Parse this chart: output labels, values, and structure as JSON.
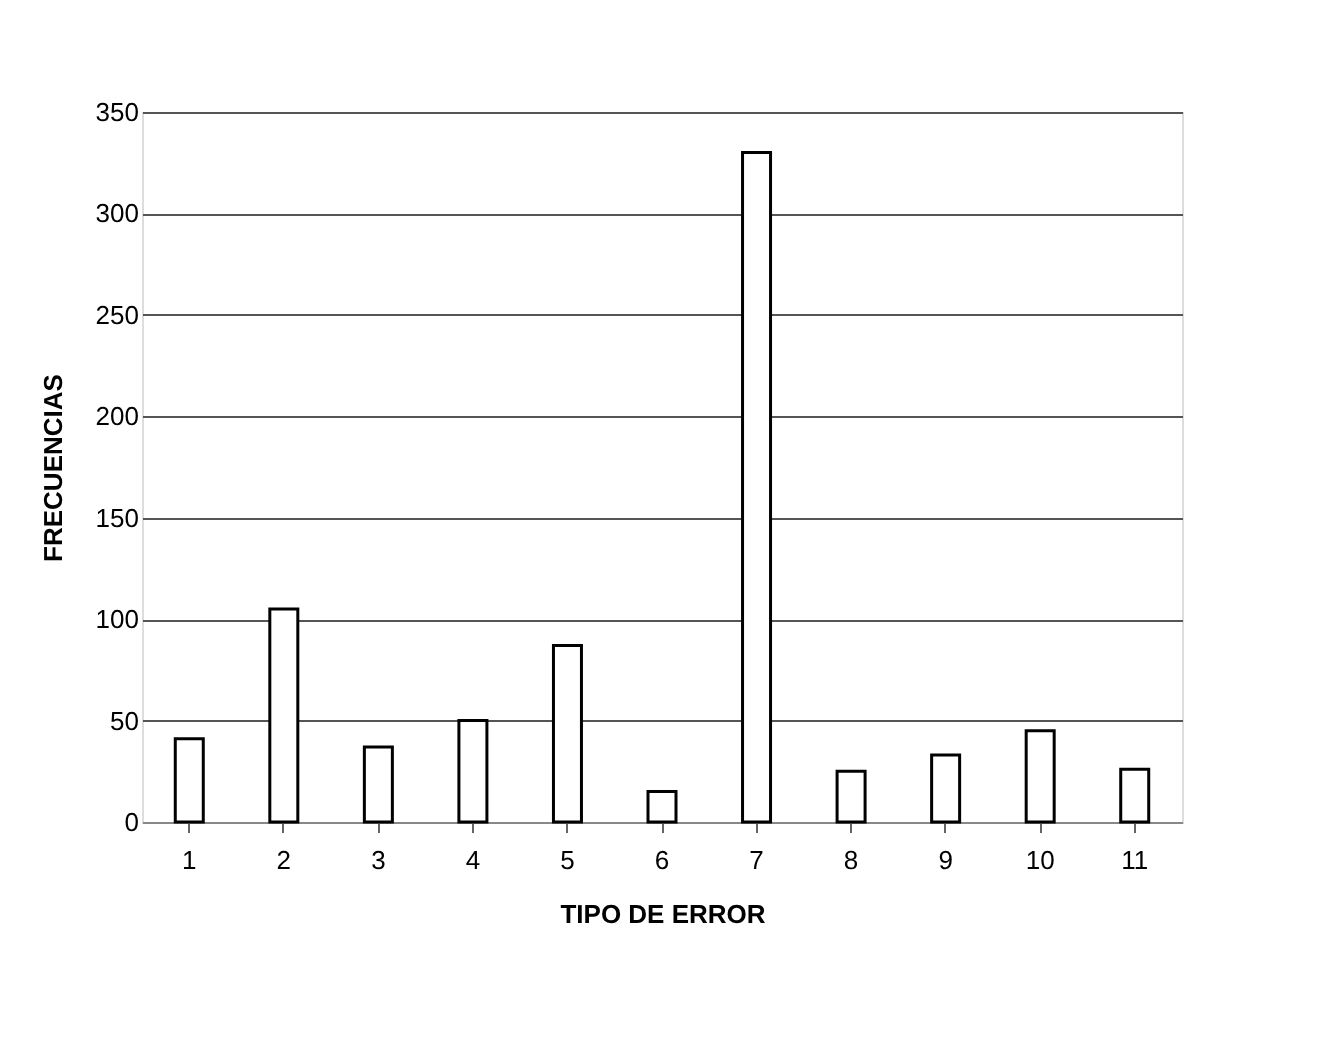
{
  "chart_data": {
    "type": "bar",
    "xlabel": "TIPO DE ERROR",
    "ylabel": "FRECUENCIAS",
    "categories": [
      "1",
      "2",
      "3",
      "4",
      "5",
      "6",
      "7",
      "8",
      "9",
      "10",
      "11"
    ],
    "values": [
      41,
      105,
      37,
      50,
      87,
      15,
      330,
      25,
      33,
      45,
      26
    ],
    "color": "#ffffff",
    "ylim": [
      0,
      350
    ],
    "yticks": [
      0,
      50,
      100,
      150,
      200,
      250,
      300,
      350
    ],
    "grid": "y"
  }
}
